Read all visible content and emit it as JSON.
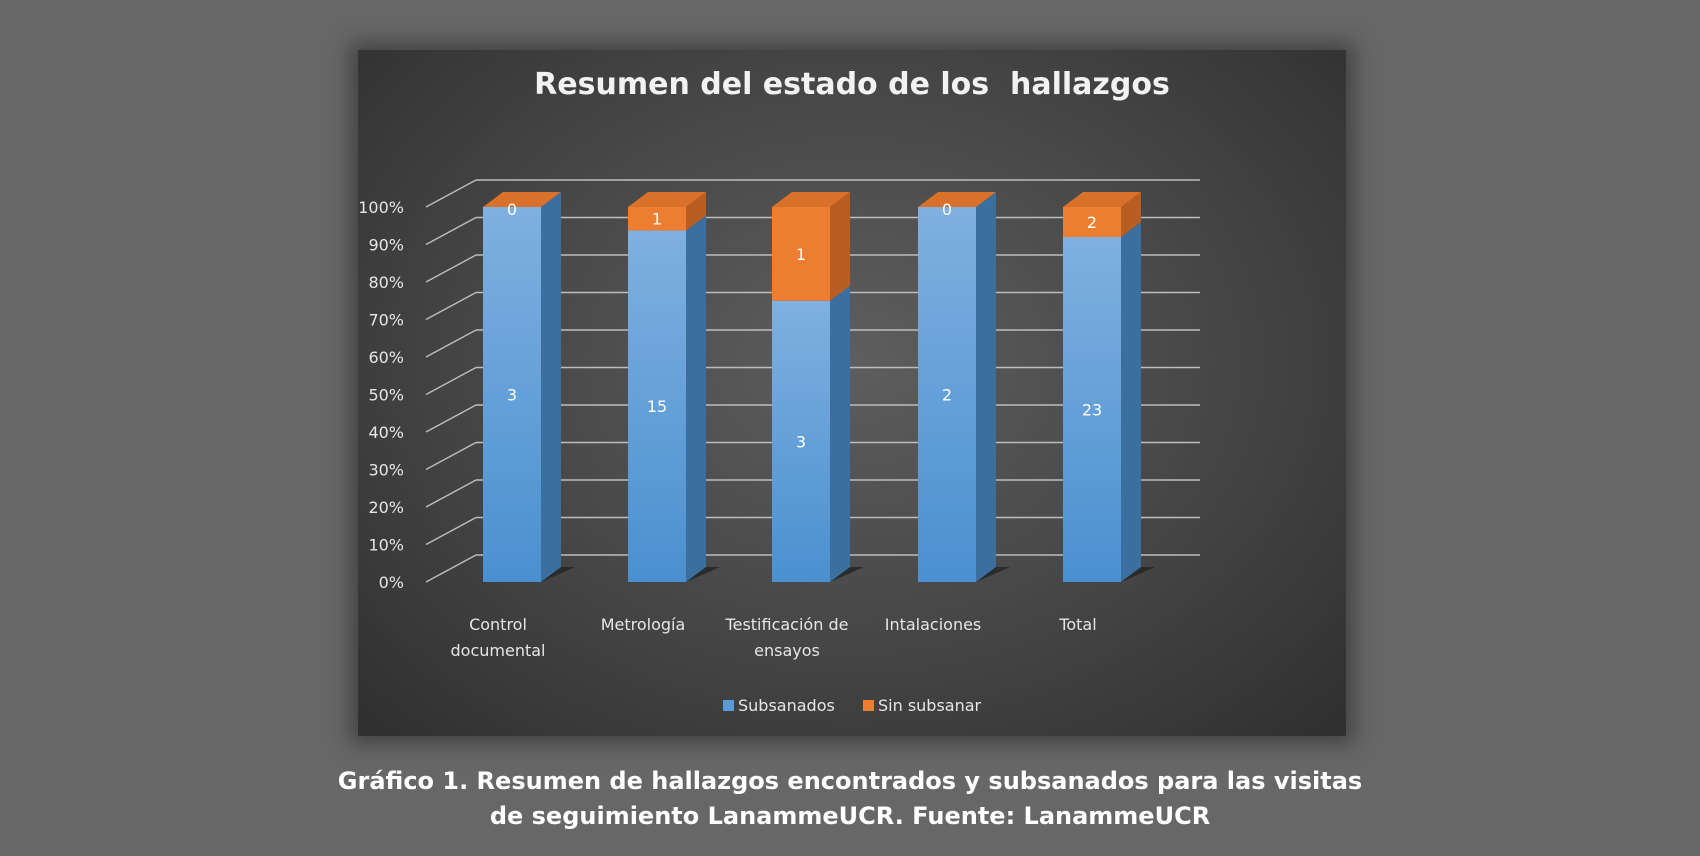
{
  "caption": {
    "line1": "Gráfico 1. Resumen de hallazgos encontrados y subsanados para las visitas",
    "line2": "de seguimiento LanammeUCR. Fuente: LanammeUCR"
  },
  "chart_data": {
    "type": "bar",
    "stacked": "percent",
    "three_d": true,
    "title": "Resumen del estado de los  hallazgos",
    "categories": [
      "Control documental",
      "Metrología",
      "Testificación de ensayos",
      "Intalaciones",
      "Total"
    ],
    "category_lines": [
      [
        "Control",
        "documental"
      ],
      [
        "Metrología"
      ],
      [
        "Testificación de",
        "ensayos"
      ],
      [
        "Intalaciones"
      ],
      [
        "Total"
      ]
    ],
    "series": [
      {
        "name": "Subsanados",
        "values": [
          3,
          15,
          3,
          2,
          23
        ],
        "color": "#5b9bd5"
      },
      {
        "name": "Sin subsanar",
        "values": [
          0,
          1,
          1,
          0,
          2
        ],
        "color": "#ed7d31"
      }
    ],
    "y_ticks": [
      "0%",
      "10%",
      "20%",
      "30%",
      "40%",
      "50%",
      "60%",
      "70%",
      "80%",
      "90%",
      "100%"
    ],
    "ylim": [
      0,
      100
    ],
    "grid": true,
    "legend_position": "bottom"
  }
}
